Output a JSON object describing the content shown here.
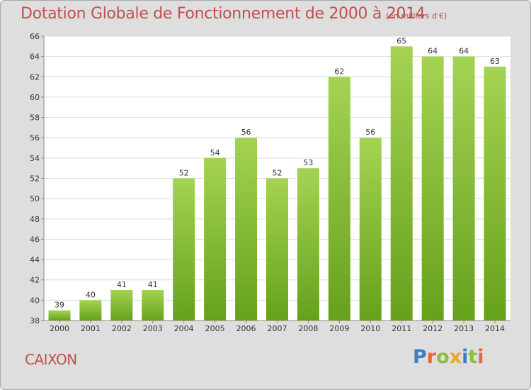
{
  "title": "Dotation Globale de Fonctionnement de 2000 à 2014",
  "subtitle": "(en milliers d'€)",
  "commune": "CAIXON",
  "logo": {
    "text": "Proxiti",
    "letter_colors": [
      "#3a7dc9",
      "#e8663c",
      "#8bbf3d",
      "#e7a926",
      "#3a7dc9",
      "#8bbf3d",
      "#e8663c"
    ]
  },
  "colors": {
    "bar_top": "#a4d352",
    "bar_bottom": "#66a11c",
    "title": "#c0504d",
    "plot_bg": "#ffffff",
    "grid": "#dcdcdc"
  },
  "chart_data": {
    "type": "bar",
    "title": "Dotation Globale de Fonctionnement de 2000 à 2014",
    "subtitle": "(en milliers d'€)",
    "xlabel": "",
    "ylabel": "",
    "categories": [
      "2000",
      "2001",
      "2002",
      "2003",
      "2004",
      "2005",
      "2006",
      "2007",
      "2008",
      "2009",
      "2010",
      "2011",
      "2012",
      "2013",
      "2014"
    ],
    "values": [
      39,
      40,
      41,
      41,
      52,
      54,
      56,
      52,
      53,
      62,
      56,
      65,
      64,
      64,
      63
    ],
    "ylim": [
      38,
      66
    ],
    "yticks": [
      38,
      40,
      42,
      44,
      46,
      48,
      50,
      52,
      54,
      56,
      58,
      60,
      62,
      64,
      66
    ],
    "grid": true,
    "legend": "none"
  }
}
